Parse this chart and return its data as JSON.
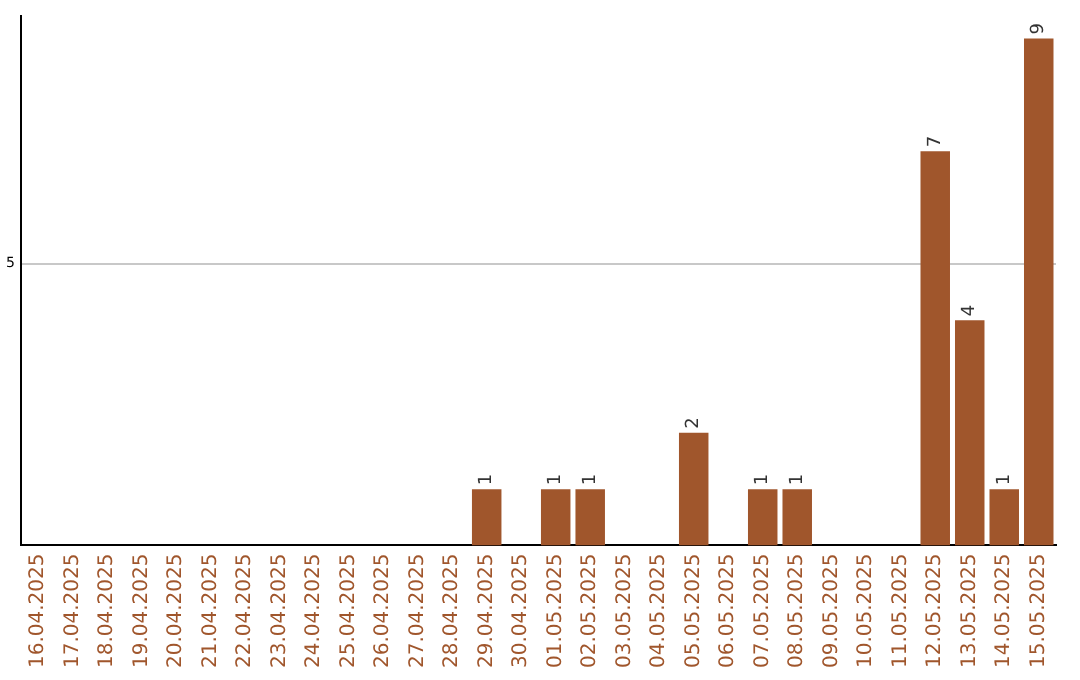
{
  "chart_data": {
    "type": "bar",
    "categories": [
      "16.04.2025",
      "17.04.2025",
      "18.04.2025",
      "19.04.2025",
      "20.04.2025",
      "21.04.2025",
      "22.04.2025",
      "23.04.2025",
      "24.04.2025",
      "25.04.2025",
      "26.04.2025",
      "27.04.2025",
      "28.04.2025",
      "29.04.2025",
      "30.04.2025",
      "01.05.2025",
      "02.05.2025",
      "03.05.2025",
      "04.05.2025",
      "05.05.2025",
      "06.05.2025",
      "07.05.2025",
      "08.05.2025",
      "09.05.2025",
      "10.05.2025",
      "11.05.2025",
      "12.05.2025",
      "13.05.2025",
      "14.05.2025",
      "15.05.2025"
    ],
    "values": [
      null,
      null,
      null,
      null,
      null,
      null,
      null,
      null,
      null,
      null,
      null,
      null,
      null,
      1,
      null,
      1,
      1,
      null,
      null,
      2,
      null,
      1,
      1,
      null,
      null,
      null,
      7,
      4,
      1,
      9
    ],
    "color": "#a0562c",
    "ylim": [
      0,
      9.4
    ],
    "yticks": [
      5
    ],
    "grid": "y",
    "legend": false,
    "data_labels": true
  }
}
